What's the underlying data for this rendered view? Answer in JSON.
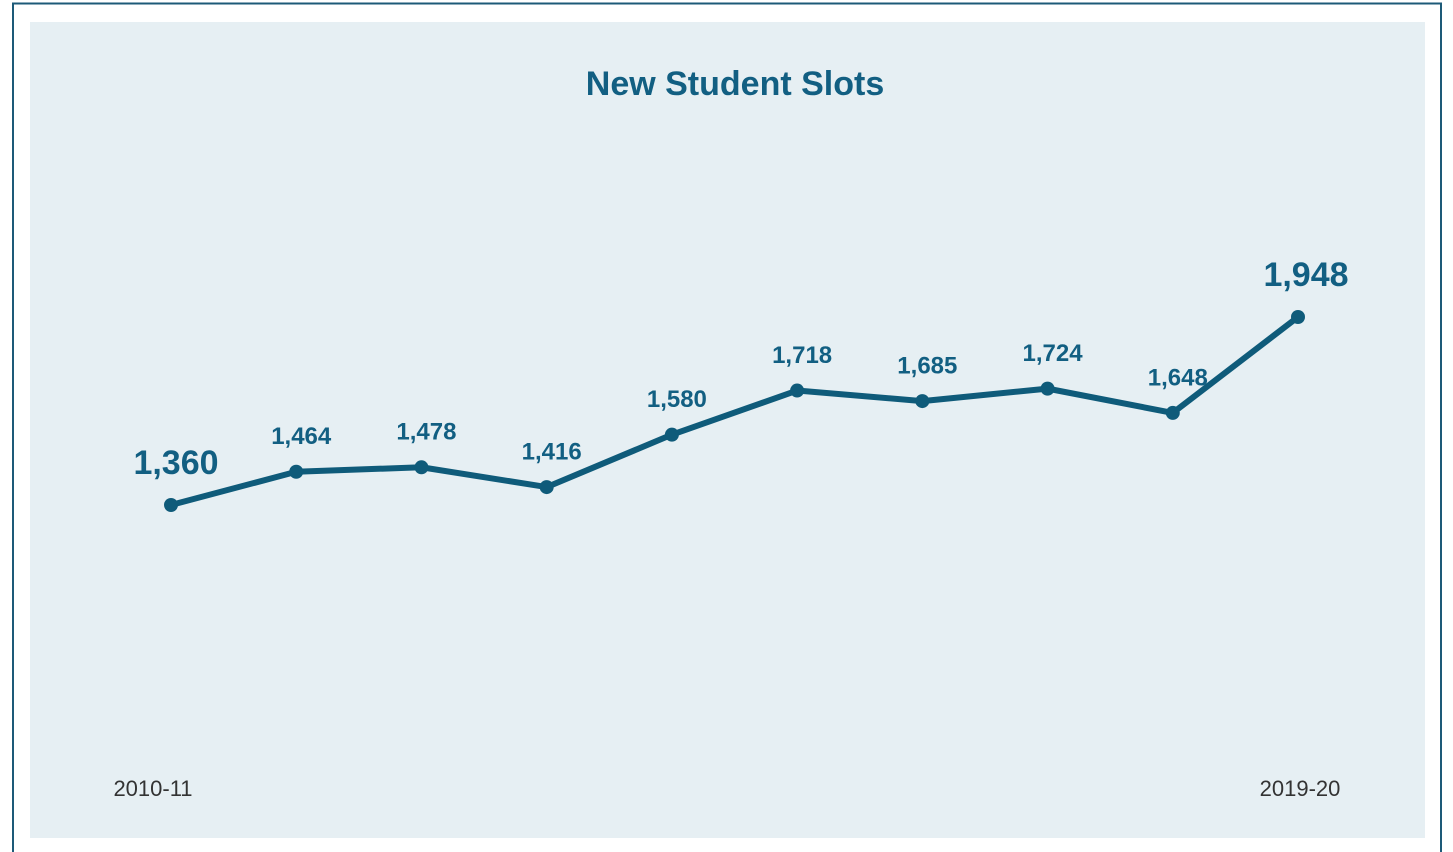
{
  "chart_data": {
    "type": "line",
    "title": "New Student Slots",
    "categories": [
      "2010-11",
      null,
      null,
      null,
      null,
      null,
      null,
      null,
      null,
      "2019-20"
    ],
    "series": [
      {
        "name": null,
        "color": "#0f5b7a",
        "values": [
          1360,
          1464,
          1478,
          1416,
          1580,
          1718,
          1685,
          1724,
          1648,
          1948
        ],
        "value_labels": [
          "1,360",
          "1,464",
          "1,478",
          "1,416",
          "1,580",
          "1,718",
          "1,685",
          "1,724",
          "1,648",
          "1,948"
        ]
      }
    ]
  }
}
